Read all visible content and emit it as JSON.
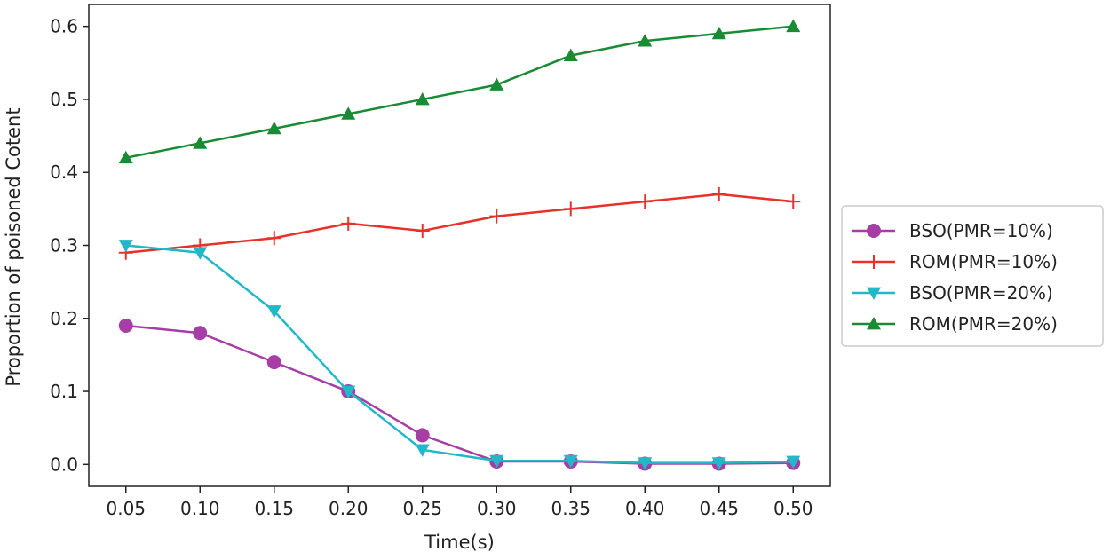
{
  "chart_data": {
    "type": "line",
    "title": "",
    "xlabel": "Time(s)",
    "ylabel": "Proportion of poisoned Cotent",
    "x": [
      0.05,
      0.1,
      0.15,
      0.2,
      0.25,
      0.3,
      0.35,
      0.4,
      0.45,
      0.5
    ],
    "x_tick_labels": [
      "0.05",
      "0.10",
      "0.15",
      "0.20",
      "0.25",
      "0.30",
      "0.35",
      "0.40",
      "0.45",
      "0.50"
    ],
    "y_ticks": [
      0.0,
      0.1,
      0.2,
      0.3,
      0.4,
      0.5,
      0.6
    ],
    "y_tick_labels": [
      "0.0",
      "0.1",
      "0.2",
      "0.3",
      "0.4",
      "0.5",
      "0.6"
    ],
    "xlim": [
      0.025,
      0.525
    ],
    "ylim": [
      -0.03,
      0.63
    ],
    "grid": false,
    "legend_position": "outside-right",
    "series": [
      {
        "name": "BSO(PMR=10%)",
        "color": "#a63ea6",
        "marker": "circle",
        "values": [
          0.19,
          0.18,
          0.14,
          0.1,
          0.04,
          0.004,
          0.004,
          0.001,
          0.001,
          0.002
        ]
      },
      {
        "name": "ROM(PMR=10%)",
        "color": "#e8312a",
        "marker": "plus",
        "values": [
          0.29,
          0.3,
          0.31,
          0.33,
          0.32,
          0.34,
          0.35,
          0.36,
          0.37,
          0.36
        ]
      },
      {
        "name": "BSO(PMR=20%)",
        "color": "#22b8c8",
        "marker": "triangle-down",
        "values": [
          0.3,
          0.29,
          0.21,
          0.1,
          0.02,
          0.005,
          0.005,
          0.002,
          0.002,
          0.004
        ]
      },
      {
        "name": "ROM(PMR=20%)",
        "color": "#1a8a35",
        "marker": "triangle-up",
        "values": [
          0.42,
          0.44,
          0.46,
          0.48,
          0.5,
          0.52,
          0.56,
          0.58,
          0.59,
          0.6
        ]
      }
    ]
  }
}
